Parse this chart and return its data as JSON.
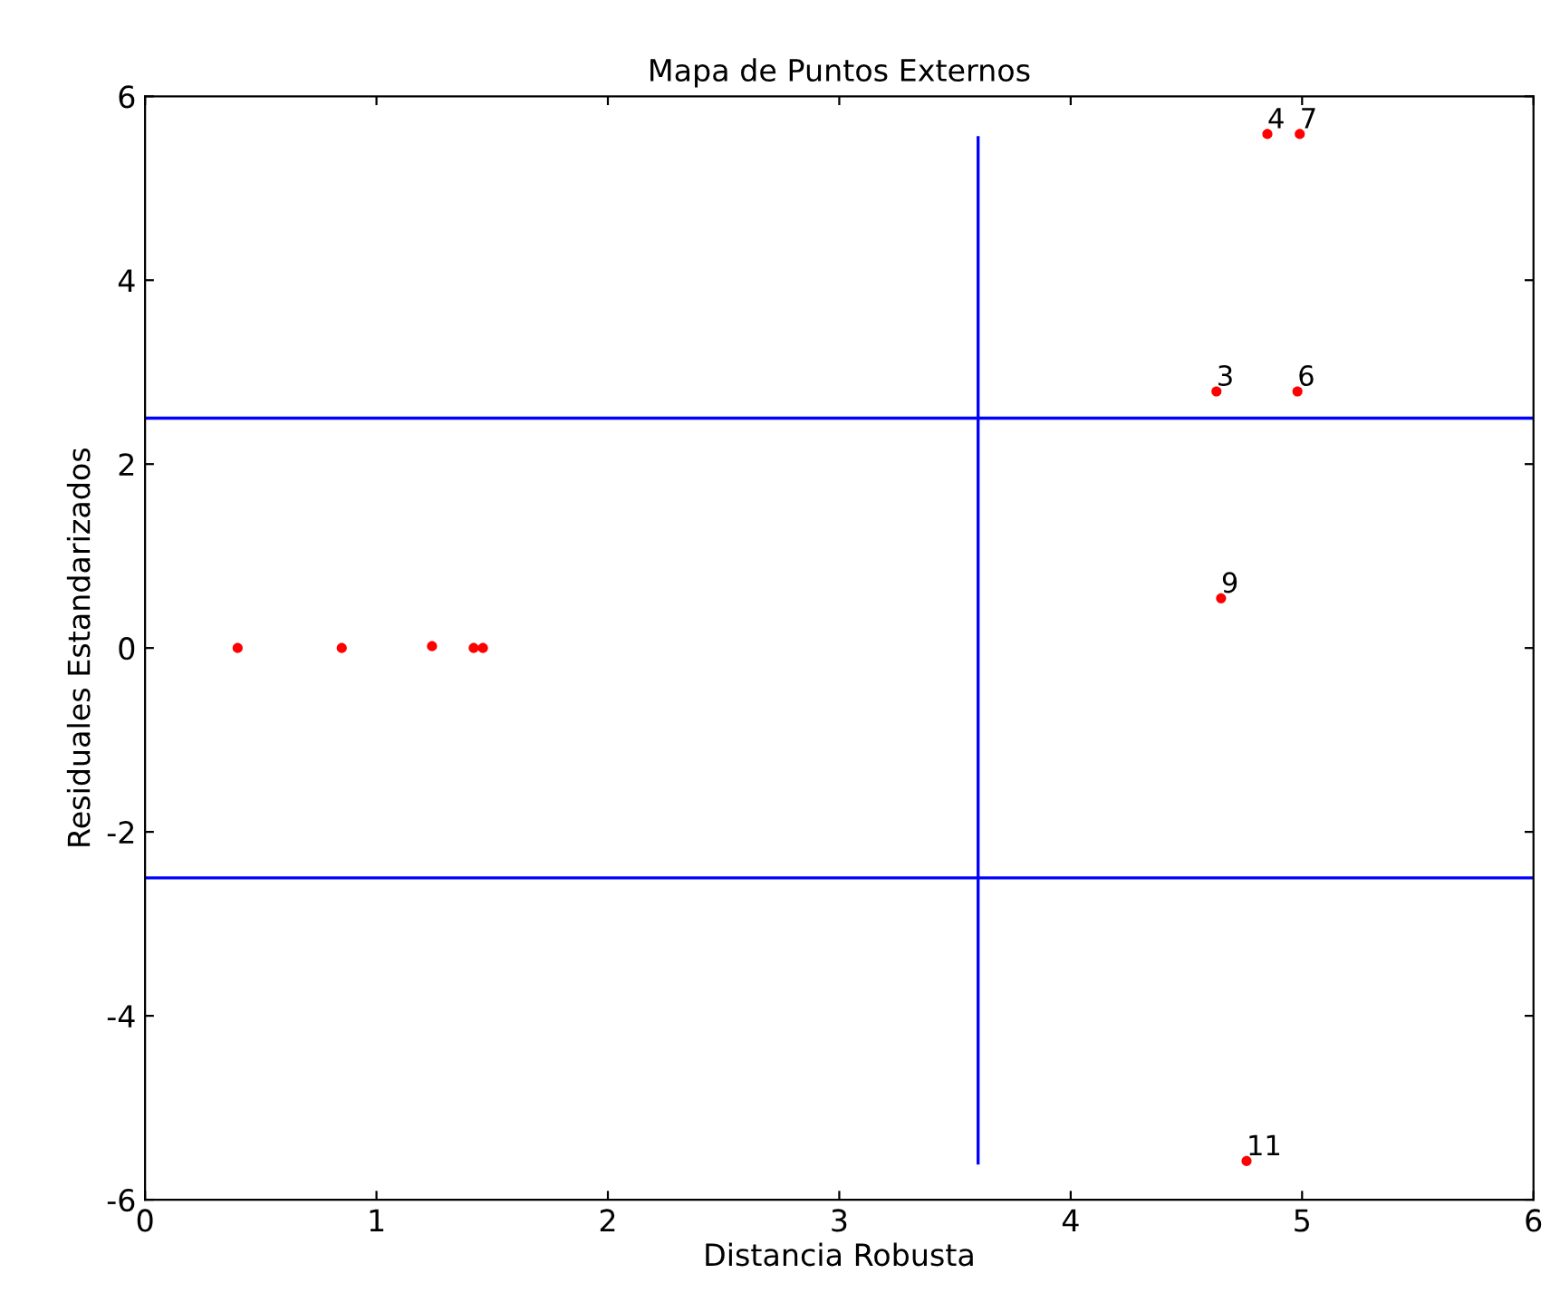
{
  "chart_data": {
    "type": "scatter",
    "title": "Mapa de Puntos Externos",
    "xlabel": "Distancia Robusta",
    "ylabel": "Residuales Estandarizados",
    "series": [
      {
        "color": "#ff0000",
        "marker": "circle",
        "x": [
          0.4,
          0.85,
          1.24,
          1.42,
          1.46,
          4.85,
          4.99,
          4.63,
          4.98,
          4.65,
          4.76
        ],
        "values": [
          0,
          0,
          0.02,
          0,
          0,
          5.59,
          5.59,
          2.79,
          2.79,
          0.54,
          -5.58
        ]
      },
      {
        "type": "line",
        "color": "#0000ff",
        "marker": "none",
        "x": [
          3.6,
          3.6
        ],
        "values": [
          -5.6,
          5.55
        ]
      }
    ],
    "ref_lines": [
      {
        "axis": "y",
        "value": 2.5,
        "color": "#0000ff"
      },
      {
        "axis": "y",
        "value": -2.5,
        "color": "#0000ff"
      }
    ],
    "annotations": [
      {
        "text": "4",
        "x": 4.85,
        "y": 5.59
      },
      {
        "text": "7",
        "x": 4.99,
        "y": 5.59
      },
      {
        "text": "3",
        "x": 4.63,
        "y": 2.79
      },
      {
        "text": "6",
        "x": 4.98,
        "y": 2.79
      },
      {
        "text": "9",
        "x": 4.65,
        "y": 0.54
      },
      {
        "text": "11",
        "x": 4.76,
        "y": -5.58
      }
    ],
    "xlim": [
      0,
      6
    ],
    "ylim": [
      -6,
      6
    ],
    "xticks": [
      0,
      1,
      2,
      3,
      4,
      5,
      6
    ],
    "yticks": [
      -6,
      -4,
      -2,
      0,
      2,
      4,
      6
    ],
    "grid": false
  }
}
